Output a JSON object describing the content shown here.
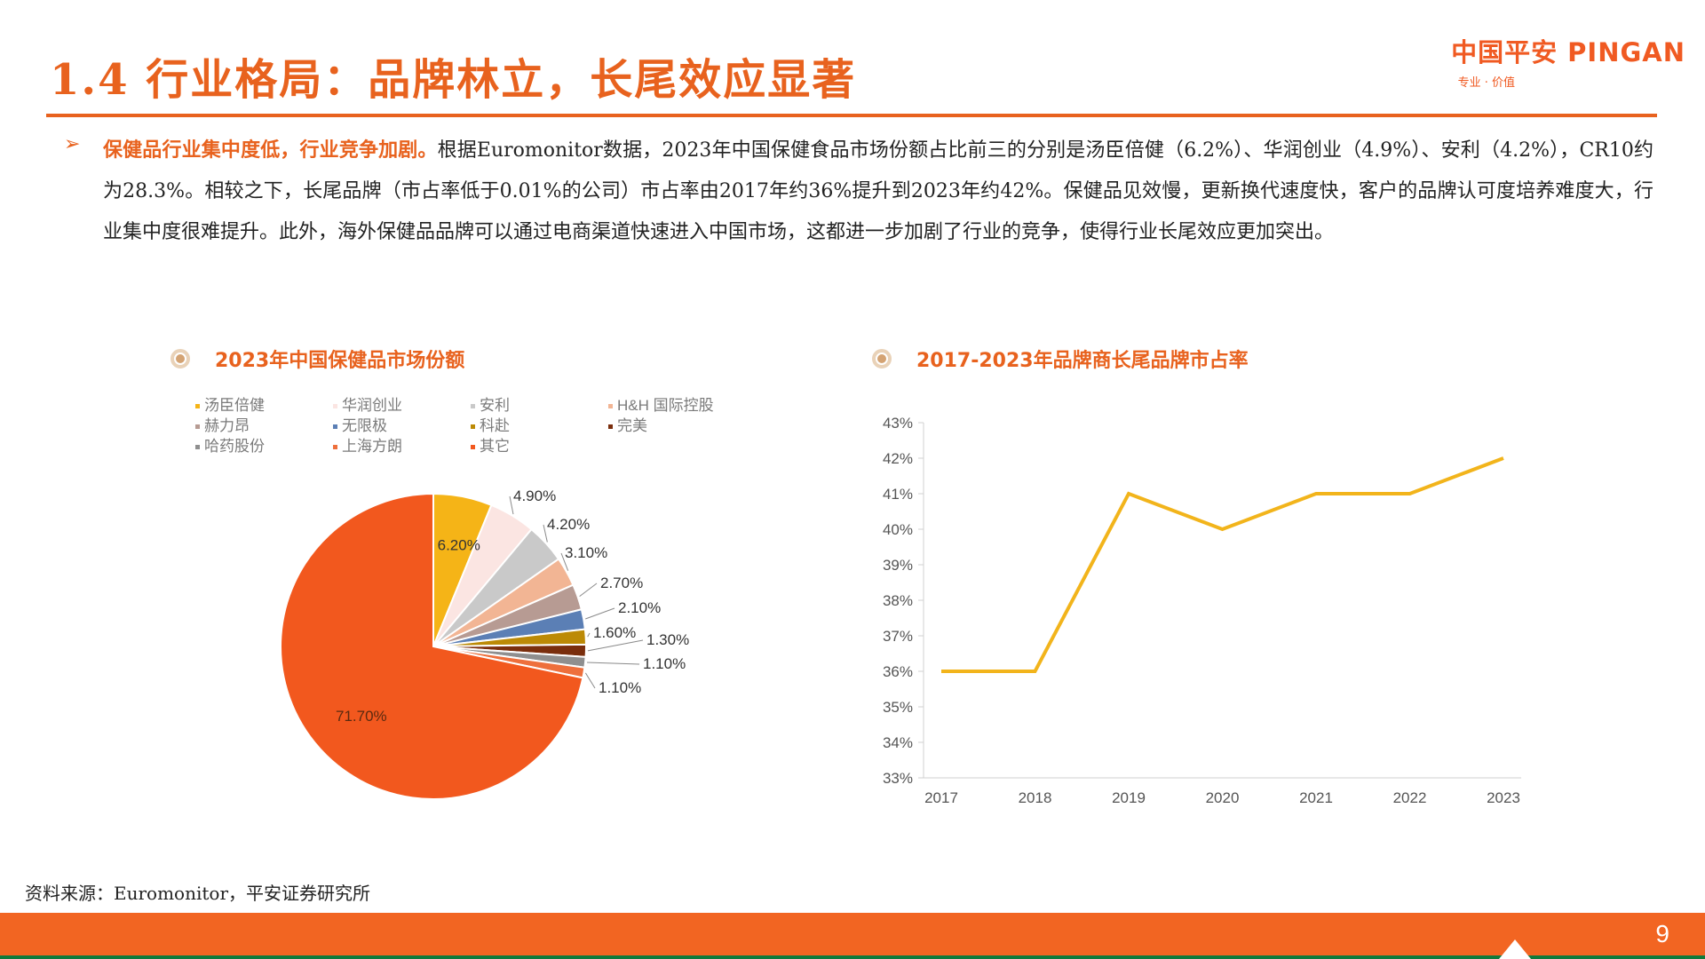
{
  "header": {
    "title": "1.4 行业格局：品牌林立，长尾效应显著",
    "logo_text": "中国平安 PINGAN",
    "logo_sub": "专业 · 价值"
  },
  "intro": {
    "bullet": "➢",
    "highlight": "保健品行业集中度低，行业竞争加剧。",
    "body": "根据Euromonitor数据，2023年中国保健食品市场份额占比前三的分别是汤臣倍健（6.2%）、华润创业（4.9%）、安利（4.2%），CR10约为28.3%。相较之下，长尾品牌（市占率低于0.01%的公司）市占率由2017年约36%提升到2023年约42%。保健品见效慢，更新换代速度快，客户的品牌认可度培养难度大，行业集中度很难提升。此外，海外保健品品牌可以通过电商渠道快速进入中国市场，这都进一步加剧了行业的竞争，使得行业长尾效应更加突出。"
  },
  "colors": {
    "accent": "#E8621E",
    "line": "#F2B41B"
  },
  "chart_data": [
    {
      "type": "pie",
      "title": "2023年中国保健品市场份额",
      "legend_position": "top",
      "categories": [
        "汤臣倍健",
        "华润创业",
        "安利",
        "H&H 国际控股",
        "赫力昂",
        "无限极",
        "科赴",
        "完美",
        "哈药股份",
        "上海方朗",
        "其它"
      ],
      "values": [
        6.2,
        4.9,
        4.2,
        3.1,
        2.7,
        2.1,
        1.6,
        1.3,
        1.1,
        1.1,
        71.7
      ],
      "labels": [
        "6.20%",
        "4.90%",
        "4.20%",
        "3.10%",
        "2.70%",
        "2.10%",
        "1.60%",
        "1.30%",
        "1.10%",
        "1.10%",
        "71.70%"
      ],
      "colors": [
        "#F5B417",
        "#FBE5E2",
        "#C9C9C9",
        "#F2B594",
        "#B79B93",
        "#5B7FB5",
        "#BC8A06",
        "#7A2E0D",
        "#8F8F8F",
        "#EE6F3C",
        "#F2581E"
      ]
    },
    {
      "type": "line",
      "title": "2017-2023年品牌商长尾品牌市占率",
      "x": [
        "2017",
        "2018",
        "2019",
        "2020",
        "2021",
        "2022",
        "2023"
      ],
      "series": [
        {
          "values": [
            36,
            36,
            41,
            40,
            41,
            41,
            42
          ]
        }
      ],
      "ylim": [
        33,
        43
      ],
      "yticks": [
        "33%",
        "34%",
        "35%",
        "36%",
        "37%",
        "38%",
        "39%",
        "40%",
        "41%",
        "42%",
        "43%"
      ],
      "grid": false
    }
  ],
  "source": "资料来源：Euromonitor，平安证券研究所",
  "page_number": "9"
}
